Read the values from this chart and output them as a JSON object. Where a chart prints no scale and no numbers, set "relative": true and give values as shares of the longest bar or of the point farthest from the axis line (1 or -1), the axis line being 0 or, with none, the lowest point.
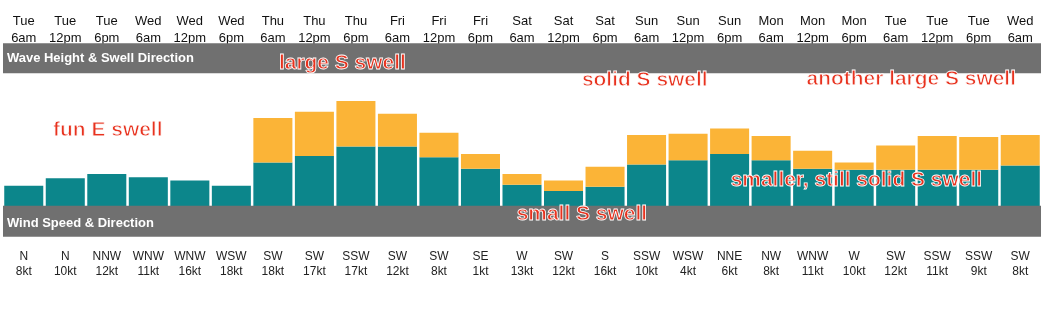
{
  "chart_data": {
    "type": "bar",
    "title": "Wave Height & Swell Direction",
    "relative": true,
    "stacked": true,
    "grid": false,
    "categories": [
      "Tue 6am",
      "Tue 12pm",
      "Tue 6pm",
      "Wed 6am",
      "Wed 12pm",
      "Wed 6pm",
      "Thu 6am",
      "Thu 12pm",
      "Thu 6pm",
      "Fri 6am",
      "Fri 12pm",
      "Fri 6pm",
      "Sat 6am",
      "Sat 12pm",
      "Sat 6pm",
      "Sun 6am",
      "Sun 12pm",
      "Sun 6pm",
      "Mon 6am",
      "Mon 12pm",
      "Mon 6pm",
      "Tue 6am",
      "Tue 12pm",
      "Tue 6pm",
      "Wed 6am"
    ],
    "series": [
      {
        "color": "#0c868b",
        "values": [
          0.2,
          0.27,
          0.31,
          0.28,
          0.25,
          0.2,
          0.42,
          0.48,
          0.57,
          0.57,
          0.47,
          0.36,
          0.21,
          0.15,
          0.19,
          0.4,
          0.44,
          0.5,
          0.44,
          0.36,
          0.35,
          0.35,
          0.35,
          0.35,
          0.39
        ]
      },
      {
        "color": "#fbb437",
        "values": [
          0,
          0,
          0,
          0,
          0,
          0,
          0.42,
          0.42,
          0.43,
          0.31,
          0.23,
          0.14,
          0.1,
          0.1,
          0.19,
          0.28,
          0.25,
          0.24,
          0.23,
          0.17,
          0.07,
          0.23,
          0.32,
          0.31,
          0.29
        ]
      }
    ],
    "annotations": [
      "fun E swell",
      "large S swell",
      "small S swell",
      "solid S swell",
      "smaller, still solid S swell",
      "another large S swell",
      "Wind Speed & Direction",
      "N 8kt",
      "N 10kt",
      "NNW 12kt",
      "WNW 11kt",
      "WNW 16kt",
      "WSW 18kt",
      "SW 18kt",
      "SW 17kt",
      "SSW 17kt",
      "SW 12kt",
      "SW 8kt",
      "SE 1kt",
      "W 13kt",
      "SW 12kt",
      "S 16kt",
      "SSW 10kt",
      "WSW 4kt",
      "NNE 6kt",
      "NW 8kt",
      "WNW 11kt",
      "W 10kt",
      "SW 12kt",
      "SSW 11kt",
      "SSW 9kt",
      "SW 8kt"
    ]
  }
}
